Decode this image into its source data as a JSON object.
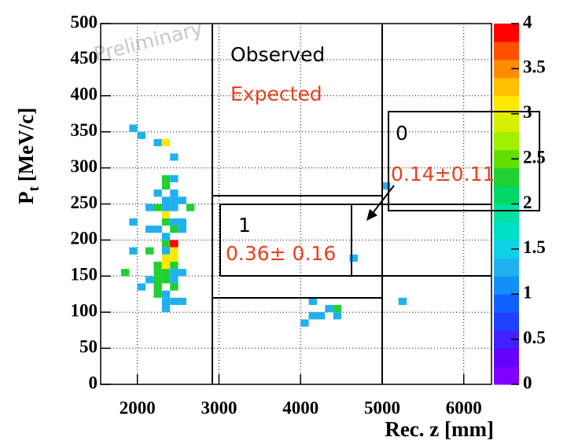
{
  "chart_data": {
    "type": "heatmap",
    "x_label": "Rec. z [mm]",
    "y_label_main": "P",
    "y_label_sub": "t",
    "y_label_unit": "[MeV/c]",
    "watermark": "Preliminary",
    "annotations": {
      "observed": "Observed",
      "expected": "Expected",
      "region0_label": "0",
      "region0_expected": "0.14±0.11",
      "region1_label": "1",
      "region1_expected": "0.36± 0.16"
    },
    "x": [
      1850,
      1950,
      1950,
      1950,
      2050,
      2050,
      2150,
      2150,
      2150,
      2150,
      2250,
      2250,
      2250,
      2250,
      2250,
      2250,
      2250,
      2250,
      2250,
      2350,
      2350,
      2350,
      2350,
      2350,
      2350,
      2350,
      2350,
      2350,
      2350,
      2350,
      2350,
      2350,
      2350,
      2350,
      2350,
      2350,
      2450,
      2450,
      2450,
      2450,
      2450,
      2450,
      2450,
      2450,
      2450,
      2450,
      2450,
      2450,
      2450,
      2450,
      2450,
      2550,
      2550,
      2550,
      2550,
      2550,
      2650,
      4050,
      4150,
      4150,
      4250,
      4350,
      4450,
      4450,
      4650,
      5050,
      5250
    ],
    "y": [
      155,
      355,
      225,
      185,
      345,
      135,
      245,
      215,
      185,
      145,
      335,
      265,
      245,
      215,
      165,
      155,
      145,
      135,
      125,
      335,
      285,
      275,
      255,
      245,
      235,
      225,
      205,
      195,
      185,
      175,
      165,
      155,
      145,
      125,
      115,
      105,
      315,
      285,
      265,
      255,
      245,
      225,
      215,
      195,
      185,
      175,
      165,
      155,
      145,
      135,
      115,
      255,
      225,
      215,
      155,
      115,
      245,
      85,
      115,
      95,
      95,
      105,
      105,
      95,
      175,
      275,
      115
    ],
    "z": [
      2.3,
      1.3,
      1.3,
      1.3,
      1.3,
      1.3,
      1.3,
      1.3,
      2.3,
      1.3,
      1.3,
      1.3,
      2.3,
      1.3,
      2.3,
      2.3,
      2.3,
      2.3,
      2.3,
      3.1,
      2.3,
      2.3,
      1.3,
      1.3,
      3.1,
      2.3,
      1.3,
      2.3,
      1.3,
      3.1,
      3.1,
      2.3,
      2.3,
      1.3,
      1.3,
      1.3,
      1.3,
      1.3,
      1.3,
      1.3,
      1.3,
      1.3,
      2.3,
      3.9,
      3.1,
      3.1,
      2.3,
      1.3,
      1.3,
      2.3,
      1.3,
      1.3,
      1.3,
      1.3,
      1.3,
      1.3,
      2.3,
      1.3,
      1.3,
      1.3,
      1.3,
      1.3,
      2.3,
      1.3,
      1.3,
      1.3,
      1.3
    ],
    "xlim": [
      1550,
      6340
    ],
    "xticks": [
      2000,
      3000,
      4000,
      5000,
      6000
    ],
    "ylim": [
      0,
      500
    ],
    "yticks": [
      0,
      50,
      100,
      150,
      200,
      250,
      300,
      350,
      400,
      450,
      500
    ],
    "zlim": [
      0,
      4
    ],
    "zticks": [
      0,
      0.5,
      1,
      1.5,
      2,
      2.5,
      3,
      3.5,
      4
    ],
    "palette": [
      "#8000ff",
      "#6600ff",
      "#4020ff",
      "#2040ff",
      "#1060ff",
      "#1090f8",
      "#20b0f0",
      "#10d0e8",
      "#00e0c8",
      "#00e0a0",
      "#00d868",
      "#20d030",
      "#60e000",
      "#a0f000",
      "#d8f000",
      "#ffe800",
      "#ffc000",
      "#ff8c00",
      "#ff5000",
      "#ff0000"
    ],
    "grid": true
  }
}
